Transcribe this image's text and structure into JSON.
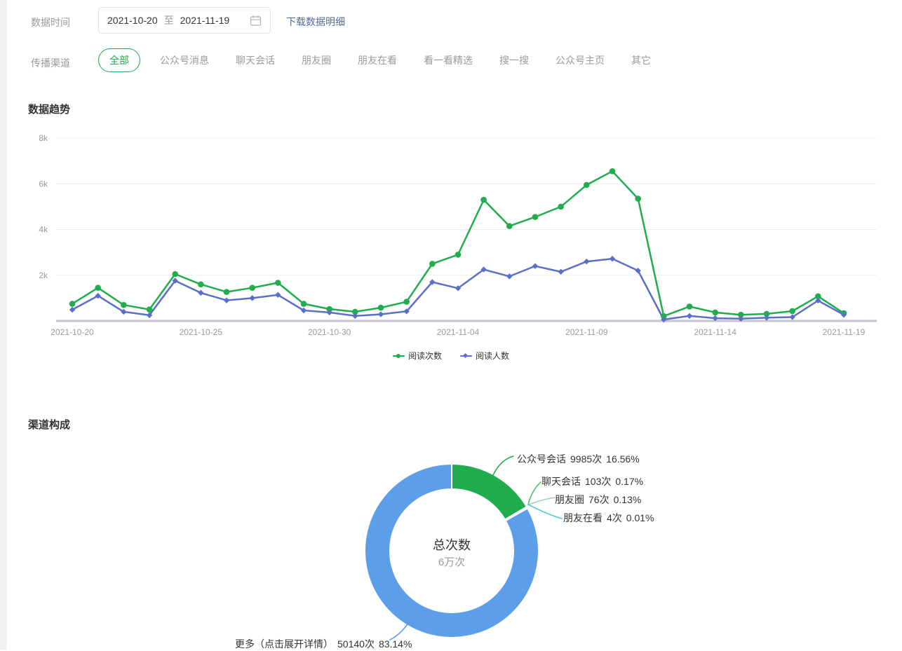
{
  "header": {
    "date_label": "数据时间",
    "date_start": "2021-10-20",
    "date_to": "至",
    "date_end": "2021-11-19",
    "download_link": "下载数据明细",
    "link_color": "#576B95",
    "channel_label": "传播渠道",
    "accent_color": "#17AC4A",
    "active_channel": "全部",
    "channels": [
      "全部",
      "公众号消息",
      "聊天会话",
      "朋友圈",
      "朋友在看",
      "看一看精选",
      "搜一搜",
      "公众号主页",
      "其它"
    ]
  },
  "chart_data": [
    {
      "type": "line",
      "title": "数据趋势",
      "x": [
        "2021-10-20",
        "2021-10-21",
        "2021-10-22",
        "2021-10-23",
        "2021-10-24",
        "2021-10-25",
        "2021-10-26",
        "2021-10-27",
        "2021-10-28",
        "2021-10-29",
        "2021-10-30",
        "2021-10-31",
        "2021-11-01",
        "2021-11-02",
        "2021-11-03",
        "2021-11-04",
        "2021-11-05",
        "2021-11-06",
        "2021-11-07",
        "2021-11-08",
        "2021-11-09",
        "2021-11-10",
        "2021-11-11",
        "2021-11-12",
        "2021-11-13",
        "2021-11-14",
        "2021-11-15",
        "2021-11-16",
        "2021-11-17",
        "2021-11-18",
        "2021-11-19"
      ],
      "x_ticks": [
        "2021-10-20",
        "2021-10-25",
        "2021-10-30",
        "2021-11-04",
        "2021-11-09",
        "2021-11-14",
        "2021-11-19"
      ],
      "ylim": [
        0,
        8000
      ],
      "yticks": [
        {
          "label": "2k",
          "value": 2000
        },
        {
          "label": "4k",
          "value": 4000
        },
        {
          "label": "6k",
          "value": 6000
        },
        {
          "label": "8k",
          "value": 8000
        }
      ],
      "grid": true,
      "legend_position": "bottom",
      "series": [
        {
          "name": "阅读次数",
          "color": "#21AC4D",
          "symbol": "circle",
          "values": [
            750,
            1450,
            700,
            500,
            2050,
            1600,
            1270,
            1450,
            1670,
            750,
            520,
            400,
            580,
            840,
            2500,
            2900,
            5300,
            4150,
            4550,
            5000,
            5950,
            6550,
            5350,
            210,
            630,
            370,
            270,
            310,
            430,
            1080,
            340
          ]
        },
        {
          "name": "阅读人数",
          "color": "#5B6FC8",
          "symbol": "diamond",
          "values": [
            490,
            1100,
            400,
            250,
            1760,
            1230,
            900,
            1000,
            1140,
            460,
            370,
            220,
            290,
            420,
            1700,
            1430,
            2250,
            1950,
            2400,
            2150,
            2600,
            2720,
            2200,
            60,
            220,
            120,
            100,
            140,
            170,
            890,
            270
          ]
        }
      ]
    },
    {
      "type": "pie",
      "title": "渠道构成",
      "center_label": "总次数",
      "center_value": "6万次",
      "slices": [
        {
          "name": "公众号会话",
          "count": "9985次",
          "percent": "16.56%",
          "value": 16.56,
          "color": "#21AC4D"
        },
        {
          "name": "聊天会话",
          "count": "103次",
          "percent": "0.17%",
          "value": 0.17,
          "color": "#5ABE6E"
        },
        {
          "name": "朋友圈",
          "count": "76次",
          "percent": "0.13%",
          "value": 0.13,
          "color": "#9FD6A9"
        },
        {
          "name": "朋友在看",
          "count": "4次",
          "percent": "0.01%",
          "value": 0.01,
          "color": "#54C8E8"
        },
        {
          "name": "更多（点击展开详情）",
          "count": "50140次",
          "percent": "83.14%",
          "value": 83.14,
          "color": "#5C9FE8"
        }
      ]
    }
  ]
}
